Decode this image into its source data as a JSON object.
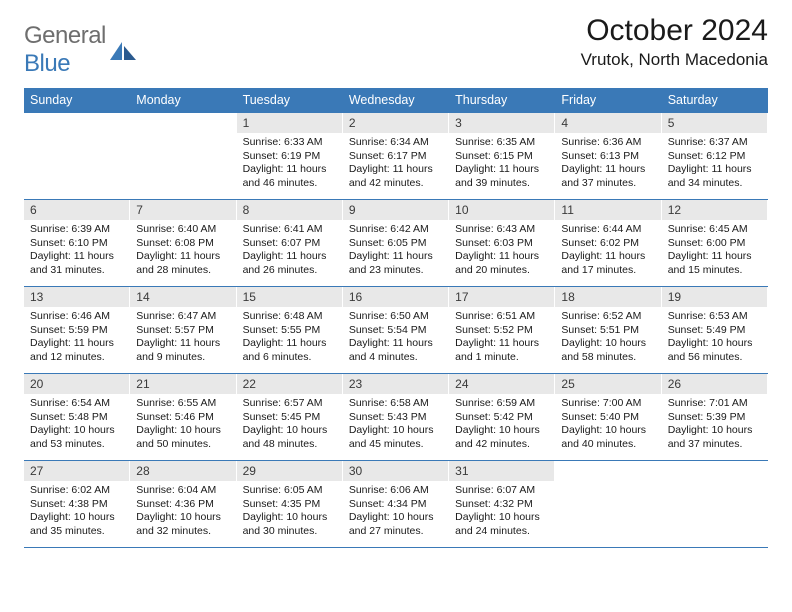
{
  "logo": {
    "part1": "General",
    "part2": "Blue"
  },
  "title": "October 2024",
  "location": "Vrutok, North Macedonia",
  "colors": {
    "header_bg": "#3a79b7",
    "header_text": "#ffffff",
    "date_bg": "#e8e8e8",
    "border": "#3a79b7",
    "text": "#1a1a1a",
    "logo_gray": "#6e6e6e",
    "logo_blue": "#3a79b7"
  },
  "fonts": {
    "family": "Arial, Helvetica, sans-serif",
    "title_size": 30,
    "location_size": 17,
    "day_header_size": 12.5,
    "date_size": 12,
    "body_size": 10.5
  },
  "day_names": [
    "Sunday",
    "Monday",
    "Tuesday",
    "Wednesday",
    "Thursday",
    "Friday",
    "Saturday"
  ],
  "weeks": [
    [
      null,
      null,
      {
        "d": "1",
        "sr": "6:33 AM",
        "ss": "6:19 PM",
        "dl": "11 hours and 46 minutes."
      },
      {
        "d": "2",
        "sr": "6:34 AM",
        "ss": "6:17 PM",
        "dl": "11 hours and 42 minutes."
      },
      {
        "d": "3",
        "sr": "6:35 AM",
        "ss": "6:15 PM",
        "dl": "11 hours and 39 minutes."
      },
      {
        "d": "4",
        "sr": "6:36 AM",
        "ss": "6:13 PM",
        "dl": "11 hours and 37 minutes."
      },
      {
        "d": "5",
        "sr": "6:37 AM",
        "ss": "6:12 PM",
        "dl": "11 hours and 34 minutes."
      }
    ],
    [
      {
        "d": "6",
        "sr": "6:39 AM",
        "ss": "6:10 PM",
        "dl": "11 hours and 31 minutes."
      },
      {
        "d": "7",
        "sr": "6:40 AM",
        "ss": "6:08 PM",
        "dl": "11 hours and 28 minutes."
      },
      {
        "d": "8",
        "sr": "6:41 AM",
        "ss": "6:07 PM",
        "dl": "11 hours and 26 minutes."
      },
      {
        "d": "9",
        "sr": "6:42 AM",
        "ss": "6:05 PM",
        "dl": "11 hours and 23 minutes."
      },
      {
        "d": "10",
        "sr": "6:43 AM",
        "ss": "6:03 PM",
        "dl": "11 hours and 20 minutes."
      },
      {
        "d": "11",
        "sr": "6:44 AM",
        "ss": "6:02 PM",
        "dl": "11 hours and 17 minutes."
      },
      {
        "d": "12",
        "sr": "6:45 AM",
        "ss": "6:00 PM",
        "dl": "11 hours and 15 minutes."
      }
    ],
    [
      {
        "d": "13",
        "sr": "6:46 AM",
        "ss": "5:59 PM",
        "dl": "11 hours and 12 minutes."
      },
      {
        "d": "14",
        "sr": "6:47 AM",
        "ss": "5:57 PM",
        "dl": "11 hours and 9 minutes."
      },
      {
        "d": "15",
        "sr": "6:48 AM",
        "ss": "5:55 PM",
        "dl": "11 hours and 6 minutes."
      },
      {
        "d": "16",
        "sr": "6:50 AM",
        "ss": "5:54 PM",
        "dl": "11 hours and 4 minutes."
      },
      {
        "d": "17",
        "sr": "6:51 AM",
        "ss": "5:52 PM",
        "dl": "11 hours and 1 minute."
      },
      {
        "d": "18",
        "sr": "6:52 AM",
        "ss": "5:51 PM",
        "dl": "10 hours and 58 minutes."
      },
      {
        "d": "19",
        "sr": "6:53 AM",
        "ss": "5:49 PM",
        "dl": "10 hours and 56 minutes."
      }
    ],
    [
      {
        "d": "20",
        "sr": "6:54 AM",
        "ss": "5:48 PM",
        "dl": "10 hours and 53 minutes."
      },
      {
        "d": "21",
        "sr": "6:55 AM",
        "ss": "5:46 PM",
        "dl": "10 hours and 50 minutes."
      },
      {
        "d": "22",
        "sr": "6:57 AM",
        "ss": "5:45 PM",
        "dl": "10 hours and 48 minutes."
      },
      {
        "d": "23",
        "sr": "6:58 AM",
        "ss": "5:43 PM",
        "dl": "10 hours and 45 minutes."
      },
      {
        "d": "24",
        "sr": "6:59 AM",
        "ss": "5:42 PM",
        "dl": "10 hours and 42 minutes."
      },
      {
        "d": "25",
        "sr": "7:00 AM",
        "ss": "5:40 PM",
        "dl": "10 hours and 40 minutes."
      },
      {
        "d": "26",
        "sr": "7:01 AM",
        "ss": "5:39 PM",
        "dl": "10 hours and 37 minutes."
      }
    ],
    [
      {
        "d": "27",
        "sr": "6:02 AM",
        "ss": "4:38 PM",
        "dl": "10 hours and 35 minutes."
      },
      {
        "d": "28",
        "sr": "6:04 AM",
        "ss": "4:36 PM",
        "dl": "10 hours and 32 minutes."
      },
      {
        "d": "29",
        "sr": "6:05 AM",
        "ss": "4:35 PM",
        "dl": "10 hours and 30 minutes."
      },
      {
        "d": "30",
        "sr": "6:06 AM",
        "ss": "4:34 PM",
        "dl": "10 hours and 27 minutes."
      },
      {
        "d": "31",
        "sr": "6:07 AM",
        "ss": "4:32 PM",
        "dl": "10 hours and 24 minutes."
      },
      null,
      null
    ]
  ],
  "labels": {
    "sunrise": "Sunrise: ",
    "sunset": "Sunset: ",
    "daylight": "Daylight: "
  }
}
